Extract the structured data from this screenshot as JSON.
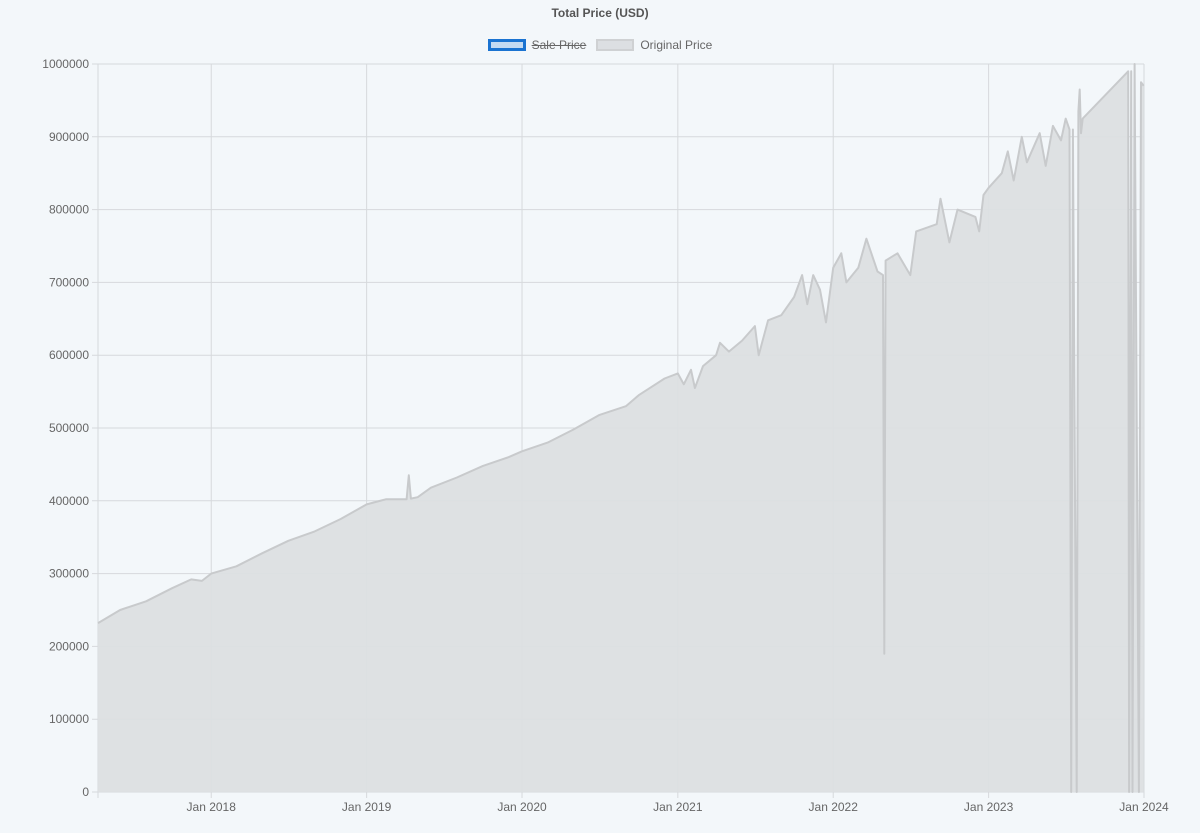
{
  "chart_data": {
    "type": "line",
    "title": "Total Price (USD)",
    "legend": {
      "position": "top",
      "entries": [
        {
          "name": "Sale Price",
          "hidden": true,
          "color": "#1a73d1"
        },
        {
          "name": "Original Price",
          "hidden": false,
          "color": "#c8cacc"
        }
      ]
    },
    "x_axis": {
      "type": "time",
      "range": [
        "2017-04-10",
        "2024-01-01"
      ],
      "tick_labels": [
        "Jan 2018",
        "Jan 2019",
        "Jan 2020",
        "Jan 2021",
        "Jan 2022",
        "Jan 2023",
        "Jan 2024"
      ],
      "tick_dates": [
        "2018-01-01",
        "2019-01-01",
        "2020-01-01",
        "2021-01-01",
        "2022-01-01",
        "2023-01-01",
        "2024-01-01"
      ]
    },
    "y_axis": {
      "range": [
        0,
        1000000
      ],
      "step": 100000,
      "tick_labels": [
        "0",
        "100000",
        "200000",
        "300000",
        "400000",
        "500000",
        "600000",
        "700000",
        "800000",
        "900000",
        "1000000"
      ]
    },
    "grid": true,
    "fill": true,
    "series": [
      {
        "name": "Original Price",
        "points": [
          [
            "2017-04-10",
            232000
          ],
          [
            "2017-06-01",
            250000
          ],
          [
            "2017-08-01",
            262000
          ],
          [
            "2017-10-01",
            280000
          ],
          [
            "2017-11-15",
            292000
          ],
          [
            "2017-12-10",
            290000
          ],
          [
            "2018-01-01",
            300000
          ],
          [
            "2018-03-01",
            310000
          ],
          [
            "2018-05-01",
            328000
          ],
          [
            "2018-07-01",
            345000
          ],
          [
            "2018-09-01",
            358000
          ],
          [
            "2018-11-01",
            375000
          ],
          [
            "2019-01-01",
            395000
          ],
          [
            "2019-02-15",
            402000
          ],
          [
            "2019-04-05",
            402000
          ],
          [
            "2019-04-10",
            435000
          ],
          [
            "2019-04-15",
            403000
          ],
          [
            "2019-05-01",
            405000
          ],
          [
            "2019-06-01",
            418000
          ],
          [
            "2019-08-01",
            432000
          ],
          [
            "2019-10-01",
            448000
          ],
          [
            "2019-12-01",
            460000
          ],
          [
            "2020-01-01",
            468000
          ],
          [
            "2020-03-01",
            480000
          ],
          [
            "2020-05-01",
            498000
          ],
          [
            "2020-07-01",
            518000
          ],
          [
            "2020-09-01",
            530000
          ],
          [
            "2020-10-01",
            545000
          ],
          [
            "2020-12-01",
            568000
          ],
          [
            "2021-01-01",
            575000
          ],
          [
            "2021-01-15",
            560000
          ],
          [
            "2021-02-01",
            580000
          ],
          [
            "2021-02-10",
            555000
          ],
          [
            "2021-03-01",
            585000
          ],
          [
            "2021-04-01",
            600000
          ],
          [
            "2021-04-10",
            617000
          ],
          [
            "2021-05-01",
            605000
          ],
          [
            "2021-06-01",
            620000
          ],
          [
            "2021-07-01",
            640000
          ],
          [
            "2021-07-10",
            600000
          ],
          [
            "2021-08-01",
            648000
          ],
          [
            "2021-09-01",
            655000
          ],
          [
            "2021-10-01",
            680000
          ],
          [
            "2021-10-20",
            710000
          ],
          [
            "2021-11-01",
            670000
          ],
          [
            "2021-11-15",
            710000
          ],
          [
            "2021-12-01",
            690000
          ],
          [
            "2021-12-15",
            645000
          ],
          [
            "2022-01-01",
            720000
          ],
          [
            "2022-01-20",
            740000
          ],
          [
            "2022-02-01",
            700000
          ],
          [
            "2022-03-01",
            720000
          ],
          [
            "2022-03-20",
            760000
          ],
          [
            "2022-04-15",
            715000
          ],
          [
            "2022-04-28",
            710000
          ],
          [
            "2022-05-01",
            190000
          ],
          [
            "2022-05-04",
            730000
          ],
          [
            "2022-06-01",
            740000
          ],
          [
            "2022-07-01",
            710000
          ],
          [
            "2022-07-15",
            770000
          ],
          [
            "2022-09-01",
            780000
          ],
          [
            "2022-09-10",
            815000
          ],
          [
            "2022-10-01",
            755000
          ],
          [
            "2022-10-20",
            800000
          ],
          [
            "2022-12-01",
            790000
          ],
          [
            "2022-12-10",
            770000
          ],
          [
            "2022-12-20",
            820000
          ],
          [
            "2023-01-01",
            830000
          ],
          [
            "2023-02-01",
            850000
          ],
          [
            "2023-02-15",
            880000
          ],
          [
            "2023-03-01",
            840000
          ],
          [
            "2023-03-20",
            900000
          ],
          [
            "2023-04-01",
            865000
          ],
          [
            "2023-05-01",
            905000
          ],
          [
            "2023-05-15",
            860000
          ],
          [
            "2023-06-01",
            915000
          ],
          [
            "2023-06-20",
            895000
          ],
          [
            "2023-07-01",
            925000
          ],
          [
            "2023-07-10",
            910000
          ],
          [
            "2023-07-14",
            0
          ],
          [
            "2023-07-18",
            910000
          ],
          [
            "2023-07-27",
            0
          ],
          [
            "2023-07-31",
            935000
          ],
          [
            "2023-08-03",
            965000
          ],
          [
            "2023-08-06",
            905000
          ],
          [
            "2023-08-10",
            925000
          ],
          [
            "2023-11-25",
            990000
          ],
          [
            "2023-11-27",
            0
          ],
          [
            "2023-12-02",
            990000
          ],
          [
            "2023-12-05",
            0
          ],
          [
            "2023-12-10",
            1000000
          ],
          [
            "2023-12-20",
            0
          ],
          [
            "2023-12-25",
            975000
          ],
          [
            "2023-12-31",
            970000
          ]
        ]
      }
    ]
  },
  "colors": {
    "background": "#f3f7fa",
    "fill": "#dcdfe2",
    "line": "#c8cacc",
    "grid": "#d6d9dc"
  }
}
